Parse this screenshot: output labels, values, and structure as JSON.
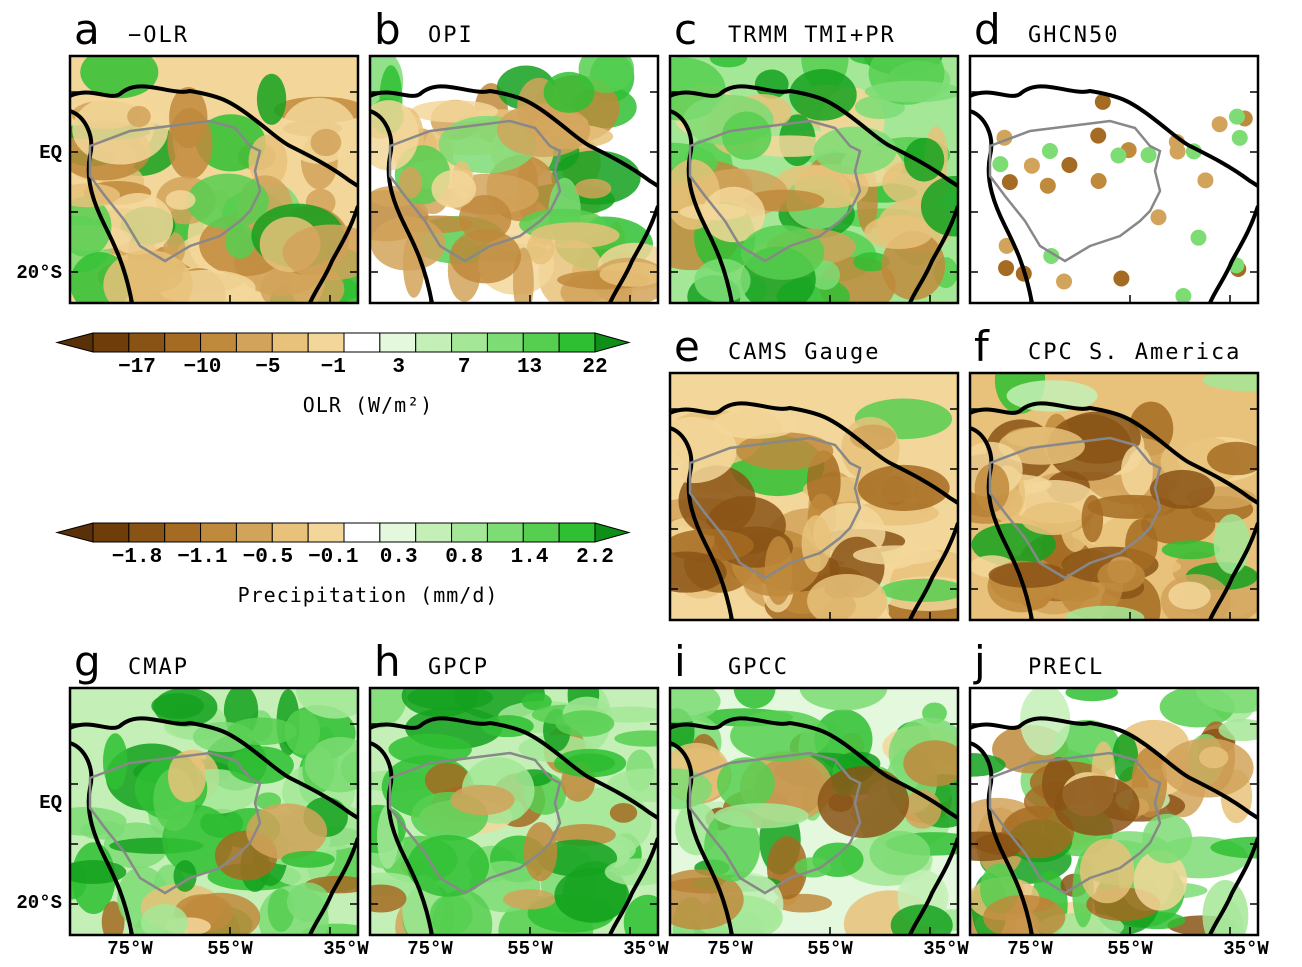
{
  "panels": [
    {
      "letter": "a",
      "title": "−OLR"
    },
    {
      "letter": "b",
      "title": "OPI"
    },
    {
      "letter": "c",
      "title": "TRMM TMI+PR"
    },
    {
      "letter": "d",
      "title": "GHCN50"
    },
    {
      "letter": "e",
      "title": "CAMS Gauge"
    },
    {
      "letter": "f",
      "title": "CPC S. America"
    },
    {
      "letter": "g",
      "title": "CMAP"
    },
    {
      "letter": "h",
      "title": "GPCP"
    },
    {
      "letter": "i",
      "title": "GPCC"
    },
    {
      "letter": "j",
      "title": "PRECL"
    }
  ],
  "y_axis_labels": [
    "EQ",
    "20°S"
  ],
  "x_axis_labels": [
    "75°W",
    "55°W",
    "35°W"
  ],
  "colorbars": [
    {
      "ticks": [
        "−17",
        "−10",
        "−5",
        "−1",
        "3",
        "7",
        "13",
        "22"
      ],
      "label": "OLR (W/m²)"
    },
    {
      "ticks": [
        "−1.8",
        "−1.1",
        "−0.5",
        "−0.1",
        "0.3",
        "0.8",
        "1.4",
        "2.2"
      ],
      "label": "Precipitation (mm/d)"
    }
  ]
}
